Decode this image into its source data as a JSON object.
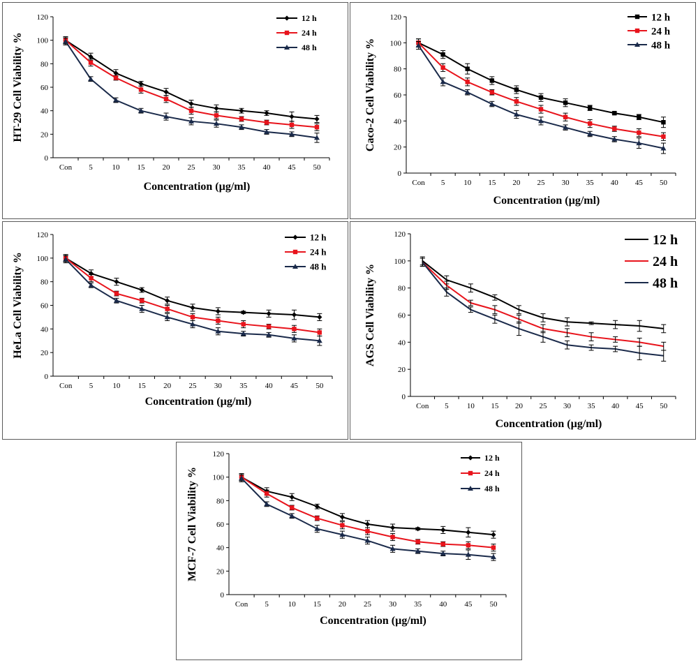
{
  "chart_data": [
    {
      "type": "line",
      "title": "",
      "xlabel": "Concentration (µg/ml)",
      "ylabel": "HT-29 Cell Viability %",
      "categories": [
        "Con",
        "5",
        "10",
        "15",
        "20",
        "25",
        "30",
        "35",
        "40",
        "45",
        "50"
      ],
      "ylim": [
        0,
        120
      ],
      "yticks": [
        "0",
        "20",
        "40",
        "60",
        "80",
        "100",
        "120"
      ],
      "legend_position": "top-right",
      "series": [
        {
          "name": "12 h",
          "color": "#000000",
          "marker": "diamond",
          "values": [
            100,
            86,
            72,
            63,
            56,
            46,
            42,
            40,
            38,
            35,
            33
          ],
          "errors": [
            3,
            3,
            3,
            2,
            3,
            3,
            3,
            2,
            2,
            4,
            3
          ]
        },
        {
          "name": "24 h",
          "color": "#e8141c",
          "marker": "square",
          "values": [
            100,
            81,
            68,
            58,
            50,
            40,
            36,
            33,
            30,
            28,
            26
          ],
          "errors": [
            3,
            3,
            2,
            3,
            3,
            3,
            3,
            2,
            2,
            3,
            3
          ]
        },
        {
          "name": "48 h",
          "color": "#1a2a4a",
          "marker": "triangle",
          "values": [
            99,
            67,
            49,
            40,
            35,
            31,
            29,
            26,
            22,
            20,
            17
          ],
          "errors": [
            3,
            2,
            2,
            2,
            3,
            3,
            3,
            2,
            2,
            2,
            4
          ]
        }
      ]
    },
    {
      "type": "line",
      "title": "",
      "xlabel": "Concentration (µg/ml)",
      "ylabel": "Caco-2 Cell Viability %",
      "categories": [
        "Con",
        "5",
        "10",
        "15",
        "20",
        "25",
        "30",
        "35",
        "40",
        "45",
        "50"
      ],
      "ylim": [
        0,
        120
      ],
      "yticks": [
        "0",
        "20",
        "40",
        "60",
        "80",
        "100",
        "120"
      ],
      "legend_position": "top-right",
      "series": [
        {
          "name": "12 h",
          "color": "#000000",
          "marker": "square",
          "values": [
            100,
            91,
            80,
            71,
            64,
            58,
            54,
            50,
            46,
            43,
            39
          ],
          "errors": [
            3,
            3,
            4,
            3,
            3,
            3,
            3,
            2,
            1,
            2,
            4
          ]
        },
        {
          "name": "24 h",
          "color": "#e8141c",
          "marker": "square",
          "values": [
            100,
            81,
            70,
            62,
            55,
            49,
            43,
            38,
            34,
            31,
            28
          ],
          "errors": [
            3,
            3,
            3,
            2,
            3,
            3,
            3,
            3,
            2,
            3,
            3
          ]
        },
        {
          "name": "48 h",
          "color": "#1a2a4a",
          "marker": "triangle",
          "values": [
            98,
            70,
            62,
            53,
            45,
            40,
            35,
            30,
            26,
            23,
            19
          ],
          "errors": [
            3,
            3,
            2,
            2,
            3,
            3,
            2,
            2,
            2,
            4,
            4
          ]
        }
      ]
    },
    {
      "type": "line",
      "title": "",
      "xlabel": "Concentration (µg/ml)",
      "ylabel": "HeLa Cell Viability %",
      "categories": [
        "Con",
        "5",
        "10",
        "15",
        "20",
        "25",
        "30",
        "35",
        "40",
        "45",
        "50"
      ],
      "ylim": [
        0,
        120
      ],
      "yticks": [
        "0",
        "20",
        "40",
        "60",
        "80",
        "100",
        "120"
      ],
      "legend_position": "top-right",
      "series": [
        {
          "name": "12 h",
          "color": "#000000",
          "marker": "diamond",
          "values": [
            100,
            87,
            80,
            73,
            64,
            58,
            55,
            54,
            53,
            52,
            50
          ],
          "errors": [
            3,
            3,
            3,
            2,
            3,
            3,
            3,
            1,
            3,
            4,
            3
          ]
        },
        {
          "name": "24 h",
          "color": "#e8141c",
          "marker": "square",
          "values": [
            100,
            83,
            70,
            64,
            57,
            50,
            47,
            44,
            42,
            40,
            37
          ],
          "errors": [
            3,
            3,
            2,
            2,
            3,
            3,
            3,
            3,
            2,
            3,
            3
          ]
        },
        {
          "name": "48 h",
          "color": "#1a2a4a",
          "marker": "triangle",
          "values": [
            99,
            77,
            64,
            57,
            50,
            44,
            38,
            36,
            35,
            32,
            30
          ],
          "errors": [
            3,
            2,
            2,
            3,
            3,
            3,
            3,
            2,
            2,
            3,
            4
          ]
        }
      ]
    },
    {
      "type": "line",
      "title": "",
      "xlabel": "Concentration (µg/ml)",
      "ylabel": "AGS Cell Viability %",
      "categories": [
        "Con",
        "5",
        "10",
        "15",
        "20",
        "25",
        "30",
        "35",
        "40",
        "45",
        "50"
      ],
      "ylim": [
        0,
        120
      ],
      "yticks": [
        "0",
        "20",
        "40",
        "60",
        "80",
        "100",
        "120"
      ],
      "legend_position": "top-right",
      "series": [
        {
          "name": "12 h",
          "color": "#000000",
          "marker": "none",
          "values": [
            100,
            86,
            80,
            73,
            64,
            58,
            55,
            54,
            53,
            52,
            50
          ],
          "errors": [
            3,
            3,
            3,
            2,
            3,
            3,
            3,
            1,
            3,
            4,
            3
          ]
        },
        {
          "name": "24 h",
          "color": "#e8141c",
          "marker": "none",
          "values": [
            99,
            82,
            69,
            64,
            57,
            50,
            47,
            44,
            42,
            40,
            37
          ],
          "errors": [
            3,
            3,
            2,
            3,
            3,
            3,
            3,
            3,
            2,
            3,
            3
          ]
        },
        {
          "name": "48 h",
          "color": "#1a2a4a",
          "marker": "none",
          "values": [
            99,
            77,
            64,
            57,
            50,
            44,
            38,
            36,
            35,
            32,
            30
          ],
          "errors": [
            3,
            3,
            2,
            3,
            5,
            4,
            3,
            2,
            2,
            5,
            4
          ]
        }
      ]
    },
    {
      "type": "line",
      "title": "",
      "xlabel": "Concentration (µg/ml)",
      "ylabel": "MCF-7 Cell Viability %",
      "categories": [
        "Con",
        "5",
        "10",
        "15",
        "20",
        "25",
        "30",
        "35",
        "40",
        "45",
        "50"
      ],
      "ylim": [
        0,
        120
      ],
      "yticks": [
        "0",
        "20",
        "40",
        "60",
        "80",
        "100",
        "120"
      ],
      "legend_position": "top-right",
      "series": [
        {
          "name": "12 h",
          "color": "#000000",
          "marker": "diamond",
          "values": [
            100,
            88,
            83,
            75,
            66,
            60,
            57,
            56,
            55,
            53,
            51
          ],
          "errors": [
            3,
            3,
            3,
            2,
            3,
            3,
            3,
            1,
            3,
            4,
            3
          ]
        },
        {
          "name": "24 h",
          "color": "#e8141c",
          "marker": "square",
          "values": [
            100,
            86,
            74,
            65,
            59,
            54,
            49,
            45,
            43,
            42,
            40
          ],
          "errors": [
            3,
            3,
            2,
            2,
            3,
            3,
            3,
            2,
            2,
            3,
            3
          ]
        },
        {
          "name": "48 h",
          "color": "#1a2a4a",
          "marker": "triangle",
          "values": [
            99,
            77,
            67,
            56,
            51,
            46,
            39,
            37,
            35,
            34,
            32
          ],
          "errors": [
            3,
            2,
            2,
            3,
            3,
            3,
            3,
            2,
            2,
            4,
            3
          ]
        }
      ]
    }
  ]
}
